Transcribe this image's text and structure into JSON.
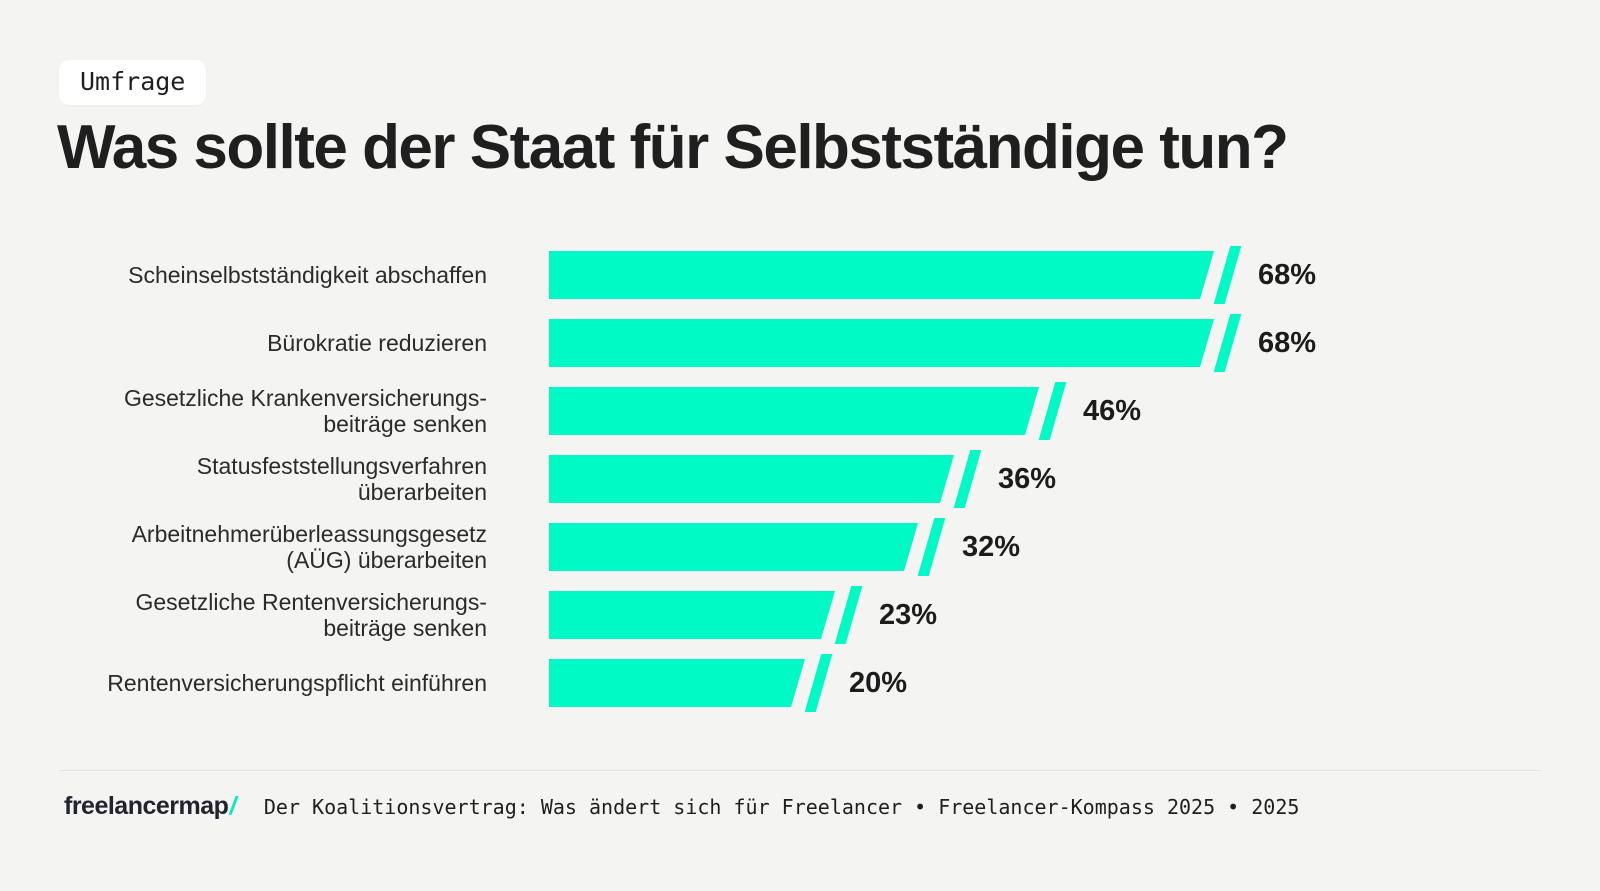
{
  "badge": {
    "label": "Umfrage"
  },
  "title": "Was sollte der Staat für Selbstständige tun?",
  "chart_data": {
    "type": "bar",
    "orientation": "horizontal",
    "title": "Was sollte der Staat für Selbstständige tun?",
    "unit": "%",
    "categories": [
      "Scheinselbstständigkeit abschaffen",
      "Bürokratie reduzieren",
      "Gesetzliche Krankenversicherungs­beiträge senken",
      "Statusfeststellungsverfahren überarbeiten",
      "Arbeitnehmerüberleassungsgesetz (AÜG) überarbeiten",
      "Gesetzliche Rentenversicherungs­beiträge senken",
      "Rentenversicherungspflicht einführen"
    ],
    "values": [
      68,
      68,
      46,
      36,
      32,
      23,
      20
    ],
    "value_labels": [
      "68%",
      "68%",
      "46%",
      "36%",
      "32%",
      "23%",
      "20%"
    ],
    "bars": [
      {
        "label_lines": [
          "Scheinselbstständigkeit abschaffen"
        ],
        "value": 68,
        "value_label": "68%"
      },
      {
        "label_lines": [
          "Bürokratie reduzieren"
        ],
        "value": 68,
        "value_label": "68%"
      },
      {
        "label_lines": [
          "Gesetzliche Krankenversicherungs-",
          "beiträge senken"
        ],
        "value": 46,
        "value_label": "46%"
      },
      {
        "label_lines": [
          "Statusfeststellungsverfahren",
          "überarbeiten"
        ],
        "value": 36,
        "value_label": "36%"
      },
      {
        "label_lines": [
          "Arbeitnehmerüberleassungsgesetz",
          "(AÜG) überarbeiten"
        ],
        "value": 32,
        "value_label": "32%"
      },
      {
        "label_lines": [
          "Gesetzliche Rentenversicherungs-",
          "beiträge senken"
        ],
        "value": 23,
        "value_label": "23%"
      },
      {
        "label_lines": [
          "Rentenversicherungspflicht einführen"
        ],
        "value": 20,
        "value_label": "20%"
      }
    ],
    "max_value": 68,
    "grid": false,
    "legend": "none",
    "value_label_position": "right-of-bar",
    "bar_color": "#00FAC6"
  },
  "footer": {
    "logo_text": "freelancermap",
    "logo_slash": "/",
    "caption": "Der Koalitionsvertrag: Was ändert sich für Freelancer • Freelancer-Kompass 2025 • 2025"
  },
  "colors": {
    "background": "#F4F4F2",
    "bar": "#00FAC6",
    "accent": "#00EFC0",
    "badge_background": "#FFFFFF",
    "text_dark": "#1F1F1F"
  }
}
